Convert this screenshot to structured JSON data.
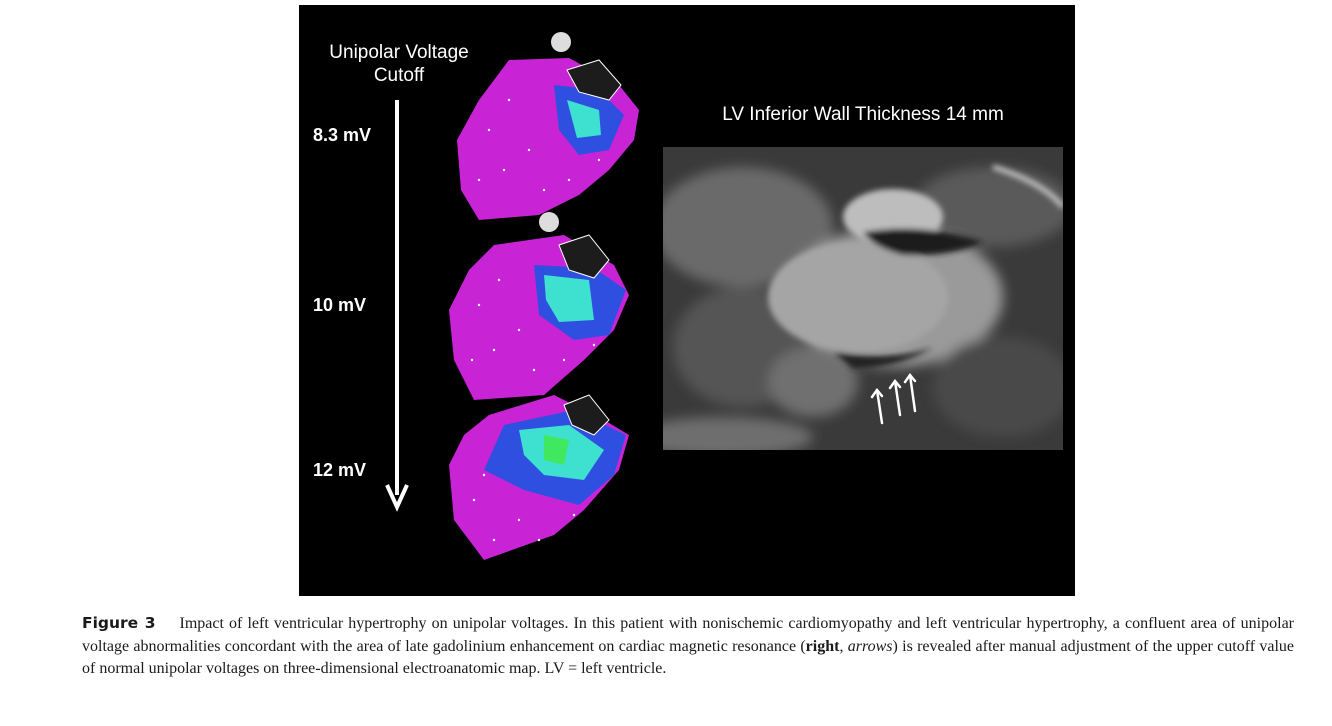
{
  "figure": {
    "panel_title": "Unipolar Voltage Cutoff",
    "levels": [
      "8.3 mV",
      "10 mV",
      "12 mV"
    ],
    "mri_title": "LV Inferior Wall Thickness 14 mm",
    "colors": {
      "normal_voltage": "#c824d6",
      "low_voltage": "#2f4fe0",
      "scar_core": "#3ee0d0",
      "background": "#000000"
    }
  },
  "caption": {
    "label": "Figure 3",
    "part1": "Impact of left ventricular hypertrophy on unipolar voltages. In this patient with nonischemic cardiomyopathy and left ventricular hypertrophy, a confluent area of unipolar voltage abnormalities concordant with the area of late gadolinium enhancement on cardiac magnetic resonance (",
    "bold": "right",
    "sep": ", ",
    "italic": "arrows",
    "part2": ") is revealed after manual adjustment of the upper cutoff value of normal unipolar voltages on three-dimensional electroanatomic map. LV = left ventricle."
  }
}
